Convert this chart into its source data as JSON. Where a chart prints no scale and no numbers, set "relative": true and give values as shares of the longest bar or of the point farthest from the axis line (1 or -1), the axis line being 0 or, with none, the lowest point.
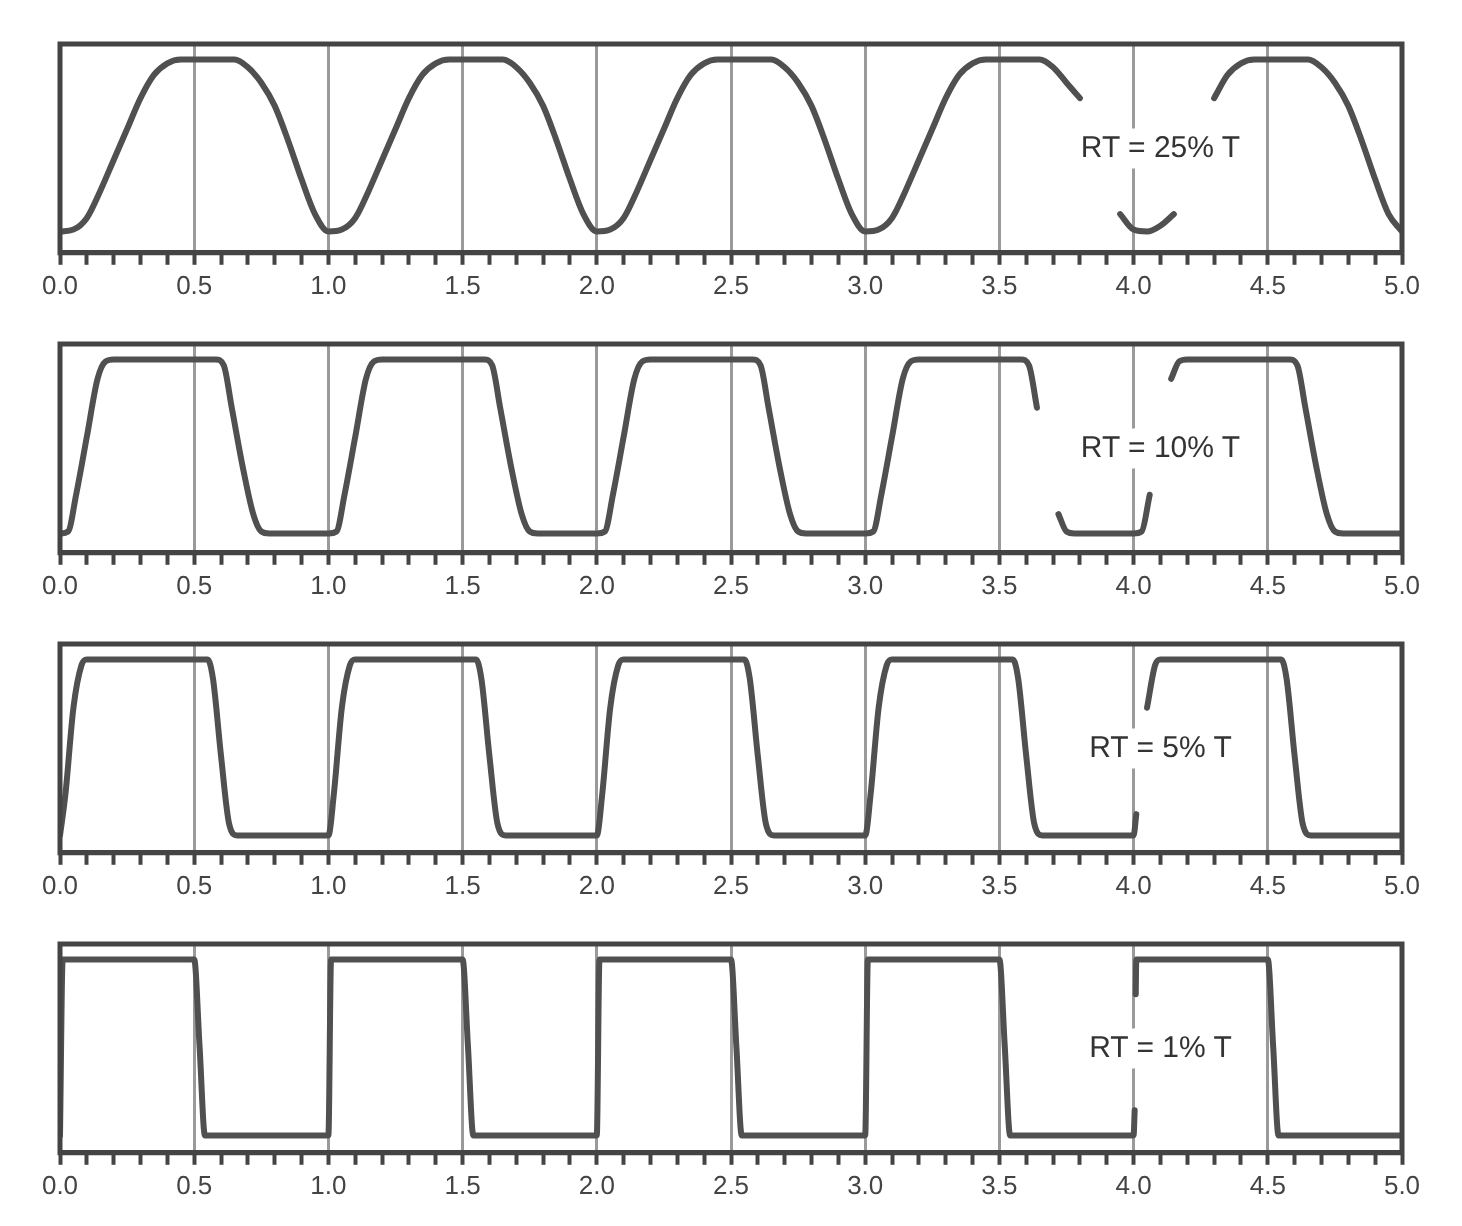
{
  "chart_data": [
    {
      "type": "line",
      "relative": true,
      "color": "#505050",
      "grid": "x",
      "xlim": [
        0,
        5
      ],
      "xticks": [
        {
          "value": 0,
          "label": "0.0"
        },
        {
          "value": 0.1,
          "label": null
        },
        {
          "value": 0.2,
          "label": null
        },
        {
          "value": 0.3,
          "label": null
        },
        {
          "value": 0.4,
          "label": null
        },
        {
          "value": 0.5,
          "label": "0.5"
        },
        {
          "value": 0.6,
          "label": null
        },
        {
          "value": 0.7,
          "label": null
        },
        {
          "value": 0.8,
          "label": null
        },
        {
          "value": 0.9,
          "label": null
        },
        {
          "value": 1,
          "label": "1.0"
        },
        {
          "value": 1.1,
          "label": null
        },
        {
          "value": 1.2,
          "label": null
        },
        {
          "value": 1.3,
          "label": null
        },
        {
          "value": 1.4,
          "label": null
        },
        {
          "value": 1.5,
          "label": "1.5"
        },
        {
          "value": 1.6,
          "label": null
        },
        {
          "value": 1.7,
          "label": null
        },
        {
          "value": 1.8,
          "label": null
        },
        {
          "value": 1.9,
          "label": null
        },
        {
          "value": 2,
          "label": "2.0"
        },
        {
          "value": 2.1,
          "label": null
        },
        {
          "value": 2.2,
          "label": null
        },
        {
          "value": 2.3,
          "label": null
        },
        {
          "value": 2.4,
          "label": null
        },
        {
          "value": 2.5,
          "label": "2.5"
        },
        {
          "value": 2.6,
          "label": null
        },
        {
          "value": 2.7,
          "label": null
        },
        {
          "value": 2.8,
          "label": null
        },
        {
          "value": 2.9,
          "label": null
        },
        {
          "value": 3,
          "label": "3.0"
        },
        {
          "value": 3.1,
          "label": null
        },
        {
          "value": 3.2,
          "label": null
        },
        {
          "value": 3.3,
          "label": null
        },
        {
          "value": 3.4,
          "label": null
        },
        {
          "value": 3.5,
          "label": "3.5"
        },
        {
          "value": 3.6,
          "label": null
        },
        {
          "value": 3.7,
          "label": null
        },
        {
          "value": 3.8,
          "label": null
        },
        {
          "value": 3.9,
          "label": null
        },
        {
          "value": 4,
          "label": "4.0"
        },
        {
          "value": 4.1,
          "label": null
        },
        {
          "value": 4.2,
          "label": null
        },
        {
          "value": 4.3,
          "label": null
        },
        {
          "value": 4.4,
          "label": null
        },
        {
          "value": 4.5,
          "label": "4.5"
        },
        {
          "value": 4.6,
          "label": null
        },
        {
          "value": 4.7,
          "label": null
        },
        {
          "value": 4.8,
          "label": null
        },
        {
          "value": 4.9,
          "label": null
        },
        {
          "value": 5,
          "label": "5.0"
        }
      ],
      "x": [
        0,
        0.05,
        0.1,
        0.15,
        0.2,
        0.25,
        0.3,
        0.35,
        0.4,
        0.45,
        0.65,
        0.7,
        0.75,
        0.8,
        0.85,
        0.9,
        0.95,
        1,
        1.05,
        1.1,
        1.15,
        1.2,
        1.25,
        1.3,
        1.35,
        1.4,
        1.45,
        1.65,
        1.7,
        1.75,
        1.8,
        1.85,
        1.9,
        1.95,
        2,
        2.05,
        2.1,
        2.15,
        2.2,
        2.25,
        2.3,
        2.35,
        2.4,
        2.45,
        2.65,
        2.7,
        2.75,
        2.8,
        2.85,
        2.9,
        2.95,
        3,
        3.05,
        3.1,
        3.15,
        3.2,
        3.25,
        3.3,
        3.35,
        3.4,
        3.45,
        3.65,
        3.7,
        3.75,
        3.8,
        3.85,
        3.95,
        4,
        4.05,
        4.1,
        4.15,
        4.2,
        4.3,
        4.35,
        4.4,
        4.45,
        4.65,
        4.7,
        4.75,
        4.8,
        4.85,
        4.9,
        4.95,
        5
      ],
      "values": [
        0.11,
        0.12,
        0.18,
        0.32,
        0.48,
        0.64,
        0.8,
        0.92,
        0.98,
        1,
        1,
        0.96,
        0.88,
        0.76,
        0.58,
        0.38,
        0.2,
        0.11,
        0.12,
        0.18,
        0.32,
        0.48,
        0.64,
        0.8,
        0.92,
        0.98,
        1,
        1,
        0.96,
        0.88,
        0.76,
        0.58,
        0.38,
        0.2,
        0.11,
        0.12,
        0.18,
        0.32,
        0.48,
        0.64,
        0.8,
        0.92,
        0.98,
        1,
        1,
        0.96,
        0.88,
        0.76,
        0.58,
        0.38,
        0.2,
        0.11,
        0.12,
        0.18,
        0.32,
        0.48,
        0.64,
        0.8,
        0.92,
        0.98,
        1,
        1,
        0.96,
        0.88,
        0.8,
        null,
        0.2,
        0.12,
        0.11,
        0.14,
        0.2,
        null,
        0.8,
        0.92,
        0.98,
        1,
        1,
        0.96,
        0.88,
        0.76,
        0.58,
        0.38,
        0.2,
        0.11
      ],
      "annotations": [
        "RT = 25% T"
      ]
    },
    {
      "type": "line",
      "relative": true,
      "color": "#505050",
      "grid": "x",
      "xlim": [
        0,
        5
      ],
      "xticks": [
        {
          "value": 0,
          "label": "0.0"
        },
        {
          "value": 0.1,
          "label": null
        },
        {
          "value": 0.2,
          "label": null
        },
        {
          "value": 0.3,
          "label": null
        },
        {
          "value": 0.4,
          "label": null
        },
        {
          "value": 0.5,
          "label": "0.5"
        },
        {
          "value": 0.6,
          "label": null
        },
        {
          "value": 0.7,
          "label": null
        },
        {
          "value": 0.8,
          "label": null
        },
        {
          "value": 0.9,
          "label": null
        },
        {
          "value": 1,
          "label": "1.0"
        },
        {
          "value": 1.1,
          "label": null
        },
        {
          "value": 1.2,
          "label": null
        },
        {
          "value": 1.3,
          "label": null
        },
        {
          "value": 1.4,
          "label": null
        },
        {
          "value": 1.5,
          "label": "1.5"
        },
        {
          "value": 1.6,
          "label": null
        },
        {
          "value": 1.7,
          "label": null
        },
        {
          "value": 1.8,
          "label": null
        },
        {
          "value": 1.9,
          "label": null
        },
        {
          "value": 2,
          "label": "2.0"
        },
        {
          "value": 2.1,
          "label": null
        },
        {
          "value": 2.2,
          "label": null
        },
        {
          "value": 2.3,
          "label": null
        },
        {
          "value": 2.4,
          "label": null
        },
        {
          "value": 2.5,
          "label": "2.5"
        },
        {
          "value": 2.6,
          "label": null
        },
        {
          "value": 2.7,
          "label": null
        },
        {
          "value": 2.8,
          "label": null
        },
        {
          "value": 2.9,
          "label": null
        },
        {
          "value": 3,
          "label": "3.0"
        },
        {
          "value": 3.1,
          "label": null
        },
        {
          "value": 3.2,
          "label": null
        },
        {
          "value": 3.3,
          "label": null
        },
        {
          "value": 3.4,
          "label": null
        },
        {
          "value": 3.5,
          "label": "3.5"
        },
        {
          "value": 3.6,
          "label": null
        },
        {
          "value": 3.7,
          "label": null
        },
        {
          "value": 3.8,
          "label": null
        },
        {
          "value": 3.9,
          "label": null
        },
        {
          "value": 4,
          "label": "4.0"
        },
        {
          "value": 4.1,
          "label": null
        },
        {
          "value": 4.2,
          "label": null
        },
        {
          "value": 4.3,
          "label": null
        },
        {
          "value": 4.4,
          "label": null
        },
        {
          "value": 4.5,
          "label": "4.5"
        },
        {
          "value": 4.6,
          "label": null
        },
        {
          "value": 4.7,
          "label": null
        },
        {
          "value": 4.8,
          "label": null
        },
        {
          "value": 4.9,
          "label": null
        },
        {
          "value": 5,
          "label": "5.0"
        }
      ],
      "x": [
        0,
        0.03,
        0.06,
        0.1,
        0.14,
        0.17,
        0.2,
        0.58,
        0.61,
        0.64,
        0.68,
        0.72,
        0.75,
        0.78,
        1,
        1.03,
        1.06,
        1.1,
        1.14,
        1.17,
        1.2,
        1.58,
        1.61,
        1.64,
        1.68,
        1.72,
        1.75,
        1.78,
        2,
        2.03,
        2.06,
        2.1,
        2.14,
        2.17,
        2.2,
        2.58,
        2.61,
        2.64,
        2.68,
        2.72,
        2.75,
        2.78,
        3,
        3.03,
        3.06,
        3.1,
        3.14,
        3.17,
        3.2,
        3.58,
        3.61,
        3.64,
        3.68,
        3.72,
        3.75,
        3.78,
        4,
        4.03,
        4.06,
        4.1,
        4.14,
        4.17,
        4.2,
        4.58,
        4.61,
        4.64,
        4.68,
        4.72,
        4.75,
        4.78,
        5
      ],
      "values": [
        0.1,
        0.11,
        0.3,
        0.6,
        0.9,
        0.99,
        1,
        1,
        0.97,
        0.75,
        0.45,
        0.2,
        0.11,
        0.1,
        0.1,
        0.11,
        0.3,
        0.6,
        0.9,
        0.99,
        1,
        1,
        0.97,
        0.75,
        0.45,
        0.2,
        0.11,
        0.1,
        0.1,
        0.11,
        0.3,
        0.6,
        0.9,
        0.99,
        1,
        1,
        0.97,
        0.75,
        0.45,
        0.2,
        0.11,
        0.1,
        0.1,
        0.11,
        0.3,
        0.6,
        0.9,
        0.99,
        1,
        1,
        0.97,
        0.75,
        null,
        0.2,
        0.11,
        0.1,
        0.1,
        0.11,
        0.3,
        null,
        0.9,
        0.99,
        1,
        1,
        0.97,
        0.75,
        0.45,
        0.2,
        0.11,
        0.1,
        0.1
      ],
      "annotations": [
        "RT = 10% T"
      ]
    },
    {
      "type": "line",
      "relative": true,
      "color": "#505050",
      "grid": "x",
      "xlim": [
        0,
        5
      ],
      "xticks": [
        {
          "value": 0,
          "label": "0.0"
        },
        {
          "value": 0.1,
          "label": null
        },
        {
          "value": 0.2,
          "label": null
        },
        {
          "value": 0.3,
          "label": null
        },
        {
          "value": 0.4,
          "label": null
        },
        {
          "value": 0.5,
          "label": "0.5"
        },
        {
          "value": 0.6,
          "label": null
        },
        {
          "value": 0.7,
          "label": null
        },
        {
          "value": 0.8,
          "label": null
        },
        {
          "value": 0.9,
          "label": null
        },
        {
          "value": 1,
          "label": "1.0"
        },
        {
          "value": 1.1,
          "label": null
        },
        {
          "value": 1.2,
          "label": null
        },
        {
          "value": 1.3,
          "label": null
        },
        {
          "value": 1.4,
          "label": null
        },
        {
          "value": 1.5,
          "label": "1.5"
        },
        {
          "value": 1.6,
          "label": null
        },
        {
          "value": 1.7,
          "label": null
        },
        {
          "value": 1.8,
          "label": null
        },
        {
          "value": 1.9,
          "label": null
        },
        {
          "value": 2,
          "label": "2.0"
        },
        {
          "value": 2.1,
          "label": null
        },
        {
          "value": 2.2,
          "label": null
        },
        {
          "value": 2.3,
          "label": null
        },
        {
          "value": 2.4,
          "label": null
        },
        {
          "value": 2.5,
          "label": "2.5"
        },
        {
          "value": 2.6,
          "label": null
        },
        {
          "value": 2.7,
          "label": null
        },
        {
          "value": 2.8,
          "label": null
        },
        {
          "value": 2.9,
          "label": null
        },
        {
          "value": 3,
          "label": "3.0"
        },
        {
          "value": 3.1,
          "label": null
        },
        {
          "value": 3.2,
          "label": null
        },
        {
          "value": 3.3,
          "label": null
        },
        {
          "value": 3.4,
          "label": null
        },
        {
          "value": 3.5,
          "label": "3.5"
        },
        {
          "value": 3.6,
          "label": null
        },
        {
          "value": 3.7,
          "label": null
        },
        {
          "value": 3.8,
          "label": null
        },
        {
          "value": 3.9,
          "label": null
        },
        {
          "value": 4,
          "label": "4.0"
        },
        {
          "value": 4.1,
          "label": null
        },
        {
          "value": 4.2,
          "label": null
        },
        {
          "value": 4.3,
          "label": null
        },
        {
          "value": 4.4,
          "label": null
        },
        {
          "value": 4.5,
          "label": "4.5"
        },
        {
          "value": 4.6,
          "label": null
        },
        {
          "value": 4.7,
          "label": null
        },
        {
          "value": 4.8,
          "label": null
        },
        {
          "value": 4.9,
          "label": null
        },
        {
          "value": 5,
          "label": "5.0"
        }
      ],
      "x": [
        0,
        0.02,
        0.05,
        0.08,
        0.1,
        0.55,
        0.57,
        0.6,
        0.63,
        0.66,
        1,
        1.02,
        1.05,
        1.08,
        1.1,
        1.55,
        1.57,
        1.6,
        1.63,
        1.66,
        2,
        2.02,
        2.05,
        2.08,
        2.1,
        2.55,
        2.57,
        2.6,
        2.63,
        2.66,
        3,
        3.02,
        3.05,
        3.08,
        3.1,
        3.55,
        3.57,
        3.6,
        3.63,
        3.66,
        4,
        4.01,
        4.03,
        4.05,
        4.08,
        4.1,
        4.55,
        4.57,
        4.6,
        4.63,
        4.66,
        5
      ],
      "values": [
        0.09,
        0.3,
        0.75,
        0.97,
        1,
        1,
        0.9,
        0.5,
        0.15,
        0.09,
        0.09,
        0.3,
        0.75,
        0.97,
        1,
        1,
        0.9,
        0.5,
        0.15,
        0.09,
        0.09,
        0.3,
        0.75,
        0.97,
        1,
        1,
        0.9,
        0.5,
        0.15,
        0.09,
        0.09,
        0.3,
        0.75,
        0.97,
        1,
        1,
        0.9,
        0.5,
        0.15,
        0.09,
        0.09,
        0.2,
        null,
        0.75,
        0.97,
        1,
        1,
        0.9,
        0.5,
        0.15,
        0.09,
        0.09
      ],
      "annotations": [
        "RT = 5% T"
      ]
    },
    {
      "type": "line",
      "relative": true,
      "color": "#505050",
      "grid": "x",
      "xlim": [
        0,
        5
      ],
      "xticks": [
        {
          "value": 0,
          "label": "0.0"
        },
        {
          "value": 0.1,
          "label": null
        },
        {
          "value": 0.2,
          "label": null
        },
        {
          "value": 0.3,
          "label": null
        },
        {
          "value": 0.4,
          "label": null
        },
        {
          "value": 0.5,
          "label": "0.5"
        },
        {
          "value": 0.6,
          "label": null
        },
        {
          "value": 0.7,
          "label": null
        },
        {
          "value": 0.8,
          "label": null
        },
        {
          "value": 0.9,
          "label": null
        },
        {
          "value": 1,
          "label": "1.0"
        },
        {
          "value": 1.1,
          "label": null
        },
        {
          "value": 1.2,
          "label": null
        },
        {
          "value": 1.3,
          "label": null
        },
        {
          "value": 1.4,
          "label": null
        },
        {
          "value": 1.5,
          "label": "1.5"
        },
        {
          "value": 1.6,
          "label": null
        },
        {
          "value": 1.7,
          "label": null
        },
        {
          "value": 1.8,
          "label": null
        },
        {
          "value": 1.9,
          "label": null
        },
        {
          "value": 2,
          "label": "2.0"
        },
        {
          "value": 2.1,
          "label": null
        },
        {
          "value": 2.2,
          "label": null
        },
        {
          "value": 2.3,
          "label": null
        },
        {
          "value": 2.4,
          "label": null
        },
        {
          "value": 2.5,
          "label": "2.5"
        },
        {
          "value": 2.6,
          "label": null
        },
        {
          "value": 2.7,
          "label": null
        },
        {
          "value": 2.8,
          "label": null
        },
        {
          "value": 2.9,
          "label": null
        },
        {
          "value": 3,
          "label": "3.0"
        },
        {
          "value": 3.1,
          "label": null
        },
        {
          "value": 3.2,
          "label": null
        },
        {
          "value": 3.3,
          "label": null
        },
        {
          "value": 3.4,
          "label": null
        },
        {
          "value": 3.5,
          "label": "3.5"
        },
        {
          "value": 3.6,
          "label": null
        },
        {
          "value": 3.7,
          "label": null
        },
        {
          "value": 3.8,
          "label": null
        },
        {
          "value": 3.9,
          "label": null
        },
        {
          "value": 4,
          "label": "4.0"
        },
        {
          "value": 4.1,
          "label": null
        },
        {
          "value": 4.2,
          "label": null
        },
        {
          "value": 4.3,
          "label": null
        },
        {
          "value": 4.4,
          "label": null
        },
        {
          "value": 4.5,
          "label": "4.5"
        },
        {
          "value": 4.6,
          "label": null
        },
        {
          "value": 4.7,
          "label": null
        },
        {
          "value": 4.8,
          "label": null
        },
        {
          "value": 4.9,
          "label": null
        },
        {
          "value": 5,
          "label": "5.0"
        }
      ],
      "x": [
        0,
        0.01,
        0.5,
        0.52,
        0.54,
        1,
        1.01,
        1.5,
        1.52,
        1.54,
        2,
        2.01,
        2.5,
        2.52,
        2.54,
        3,
        3.01,
        3.5,
        3.52,
        3.54,
        4,
        4.004,
        4.006,
        4.008,
        4.01,
        4.5,
        4.52,
        4.54,
        5
      ],
      "values": [
        0.09,
        1,
        1,
        0.55,
        0.09,
        0.09,
        1,
        1,
        0.55,
        0.09,
        0.09,
        1,
        1,
        0.55,
        0.09,
        0.09,
        1,
        1,
        0.55,
        0.09,
        0.09,
        0.22,
        null,
        0.82,
        1,
        1,
        0.55,
        0.09,
        0.09
      ],
      "annotations": [
        "RT = 1% T"
      ]
    }
  ]
}
